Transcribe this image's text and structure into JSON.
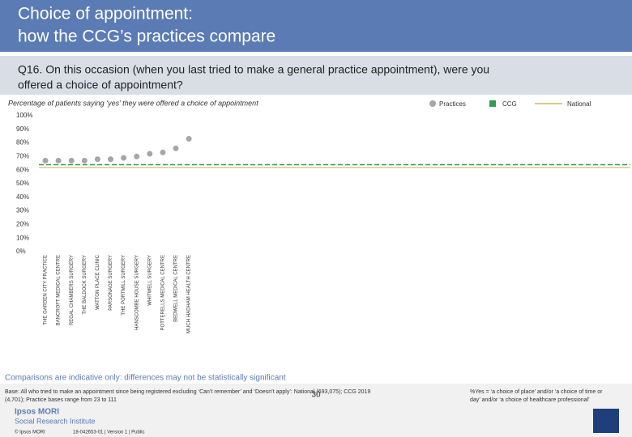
{
  "header": {
    "title_line1": "Choice of appointment:",
    "title_line2": "how the CCG’s practices compare"
  },
  "question": {
    "line1": "Q16. On this occasion (when you last tried to make a general practice appointment), were you",
    "line2": "offered a choice of appointment?"
  },
  "chart_data": {
    "type": "dot",
    "subtitle": "Percentage of patients saying ‘yes’ they were offered a choice of appointment",
    "categories": [
      "THE GARDEN CITY PRACTICE",
      "BANCROFT MEDICAL CENTRE",
      "REGAL CHAMBERS SURGERY",
      "THE BALDOCK SURGERY",
      "WATTON PLACE CLINIC",
      "PARSONAGE SURGERY",
      "THE PORTMILL SURGERY",
      "HANSCOMBE HOUSE SURGERY",
      "WHITWELL SURGERY",
      "POTTERELLS MEDICAL CENTRE",
      "BEDWELL MEDICAL CENTRE",
      "MUCH HADHAM HEALTH CENTRE"
    ],
    "series": [
      {
        "name": "Practices",
        "color": "#a6a6a6",
        "values": [
          67,
          67,
          67,
          67,
          68,
          68,
          69,
          70,
          72,
          73,
          76,
          83
        ]
      }
    ],
    "reference_lines": [
      {
        "name": "CCG",
        "color": "#2e9e4f",
        "value": 64
      },
      {
        "name": "National",
        "color": "#d8c88a",
        "value": 62
      }
    ],
    "ylim": [
      0,
      100
    ],
    "yticks": [
      {
        "value": 0,
        "label": "0%"
      },
      {
        "value": 10,
        "label": "10%"
      },
      {
        "value": 20,
        "label": "20%"
      },
      {
        "value": 30,
        "label": "30%"
      },
      {
        "value": 40,
        "label": "40%"
      },
      {
        "value": 50,
        "label": "50%"
      },
      {
        "value": 60,
        "label": "60%"
      },
      {
        "value": 70,
        "label": "70%"
      },
      {
        "value": 80,
        "label": "80%"
      },
      {
        "value": 90,
        "label": "90%"
      },
      {
        "value": 100,
        "label": "100%"
      }
    ]
  },
  "footer": {
    "note": "Comparisons are indicative only: differences may not be statistically significant",
    "base_line1": "Base: All who tried to make an appointment since being registered excluding ‘Can’t remember’ and ‘Doesn’t apply’: National (693,075); CCG 2019",
    "base_line2": "(4,701); Practice bases range from 23 to 111",
    "definition_line1": "%Yes = ‘a choice of place’ and/or ‘a choice of time or",
    "definition_line2": "day’ and/or ‘a choice of healthcare professional’",
    "page": "30",
    "logo1": "Ipsos MORI",
    "logo2": "Social Research Institute",
    "copyright": "© Ipsos MORI",
    "job": "18-042653-01 | Version 1 | Public"
  }
}
